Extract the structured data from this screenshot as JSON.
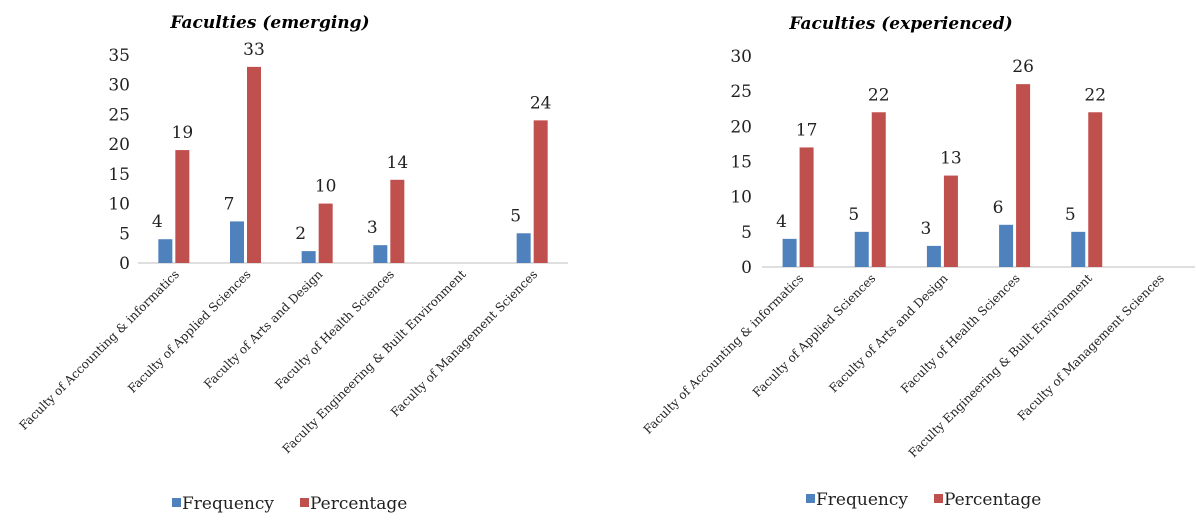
{
  "chart_data": [
    {
      "type": "bar",
      "title": "Faculties (emerging)",
      "categories": [
        "Faculty of Accounting & informatics",
        "Faculty of Applied Sciences",
        "Faculty of Arts and Design",
        "Faculty of Health Sciences",
        "Faculty Engineering & Built Environment",
        "Faculty of Management Sciences"
      ],
      "series": [
        {
          "name": "Frequency",
          "values": [
            4,
            7,
            2,
            3,
            null,
            5
          ]
        },
        {
          "name": "Percentage",
          "values": [
            19,
            33,
            10,
            14,
            null,
            24
          ]
        }
      ],
      "ylim": [
        0,
        35
      ],
      "yticks": [
        0,
        5,
        10,
        15,
        20,
        25,
        30,
        35
      ],
      "colors": [
        "#4f81bd",
        "#c0504d"
      ],
      "grid": false,
      "legend": "bottom"
    },
    {
      "type": "bar",
      "title": "Faculties (experienced)",
      "categories": [
        "Faculty of Accounting & informatics",
        "Faculty of Applied Sciences",
        "Faculty of Arts and Design",
        "Faculty of Health Sciences",
        "Faculty Engineering & Built Environment",
        "Faculty of Management Sciences"
      ],
      "series": [
        {
          "name": "Frequency",
          "values": [
            4,
            5,
            3,
            6,
            5,
            null
          ]
        },
        {
          "name": "Percentage",
          "values": [
            17,
            22,
            13,
            26,
            22,
            null
          ]
        }
      ],
      "ylim": [
        0,
        30
      ],
      "yticks": [
        0,
        5,
        10,
        15,
        20,
        25,
        30
      ],
      "colors": [
        "#4f81bd",
        "#c0504d"
      ],
      "grid": false,
      "legend": "bottom"
    }
  ]
}
